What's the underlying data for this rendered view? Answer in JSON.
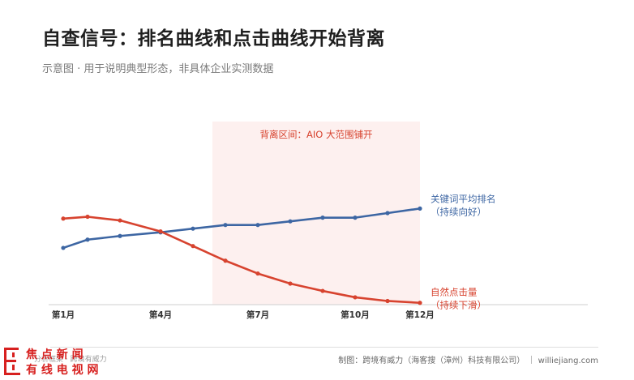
{
  "title": "自查信号：排名曲线和点击曲线开始背离",
  "subtitle": "示意图 · 用于说明典型形态，非具体企业实测数据",
  "footer": {
    "left": "分析框架 · 跨境有威力",
    "right": "制图：跨境有威力（海客搜（漳州）科技有限公司） ｜ williejiang.com"
  },
  "logo": {
    "text_top": "焦 点 新 闻",
    "text_bottom": "有 线 电 视 网",
    "color": "#d7201f"
  },
  "chart_data": {
    "type": "line",
    "x": [
      1,
      1.75,
      2.75,
      4,
      5,
      6,
      7,
      8,
      9,
      10,
      11,
      12
    ],
    "xticks": [
      1,
      4,
      7,
      10,
      12
    ],
    "xtick_labels": [
      "第1月",
      "第4月",
      "第7月",
      "第10月",
      "第12月"
    ],
    "xlim": [
      1,
      12
    ],
    "ylim": [
      0,
      100
    ],
    "series": [
      {
        "name": "关键词平均排名（持续向好）",
        "label_lines": [
          "关键词平均排名",
          "（持续向好）"
        ],
        "color": "#3d66a3",
        "values": [
          31,
          35.5,
          37.5,
          39.5,
          41.5,
          43.5,
          43.5,
          45.5,
          47.5,
          47.5,
          50,
          52.5
        ]
      },
      {
        "name": "自然点击量（持续下滑）",
        "label_lines": [
          "自然点击量",
          "（持续下滑）"
        ],
        "color": "#d7432f",
        "values": [
          47,
          48,
          46,
          40,
          32,
          24,
          17,
          11.5,
          7.5,
          4,
          2,
          1
        ]
      }
    ],
    "shaded_region": {
      "label": "背离区间：AIO 大范围铺开",
      "x_start": 5.6,
      "x_end": 12,
      "color": "#fdf0ef",
      "label_color": "#d7432f"
    },
    "grid": false
  }
}
